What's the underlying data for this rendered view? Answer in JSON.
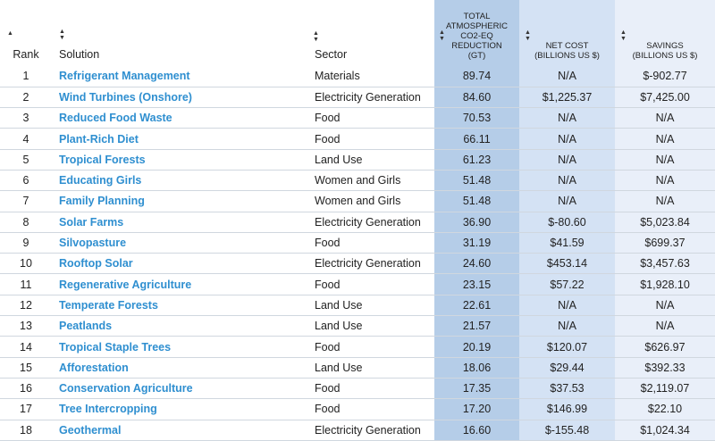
{
  "headers": {
    "rank": "Rank",
    "solution": "Solution",
    "sector": "Sector",
    "reduction": [
      "Total",
      "Atmospheric",
      "CO2-EQ",
      "Reduction",
      "(GT)"
    ],
    "net_cost": [
      "Net Cost",
      "(Billions US $)"
    ],
    "savings": [
      "Savings",
      "(Billions US $)"
    ]
  },
  "icons": {
    "sort_asc": "caret-up-icon",
    "sort_toggle": "sort-toggle-icon"
  },
  "rows": [
    {
      "rank": "1",
      "solution": "Refrigerant Management",
      "sector": "Materials",
      "reduction": "89.74",
      "net_cost": "N/A",
      "savings": "$-902.77"
    },
    {
      "rank": "2",
      "solution": "Wind Turbines (Onshore)",
      "sector": "Electricity Generation",
      "reduction": "84.60",
      "net_cost": "$1,225.37",
      "savings": "$7,425.00"
    },
    {
      "rank": "3",
      "solution": "Reduced Food Waste",
      "sector": "Food",
      "reduction": "70.53",
      "net_cost": "N/A",
      "savings": "N/A"
    },
    {
      "rank": "4",
      "solution": "Plant-Rich Diet",
      "sector": "Food",
      "reduction": "66.11",
      "net_cost": "N/A",
      "savings": "N/A"
    },
    {
      "rank": "5",
      "solution": "Tropical Forests",
      "sector": "Land Use",
      "reduction": "61.23",
      "net_cost": "N/A",
      "savings": "N/A"
    },
    {
      "rank": "6",
      "solution": "Educating Girls",
      "sector": "Women and Girls",
      "reduction": "51.48",
      "net_cost": "N/A",
      "savings": "N/A"
    },
    {
      "rank": "7",
      "solution": "Family Planning",
      "sector": "Women and Girls",
      "reduction": "51.48",
      "net_cost": "N/A",
      "savings": "N/A"
    },
    {
      "rank": "8",
      "solution": "Solar Farms",
      "sector": "Electricity Generation",
      "reduction": "36.90",
      "net_cost": "$-80.60",
      "savings": "$5,023.84"
    },
    {
      "rank": "9",
      "solution": "Silvopasture",
      "sector": "Food",
      "reduction": "31.19",
      "net_cost": "$41.59",
      "savings": "$699.37"
    },
    {
      "rank": "10",
      "solution": "Rooftop Solar",
      "sector": "Electricity Generation",
      "reduction": "24.60",
      "net_cost": "$453.14",
      "savings": "$3,457.63"
    },
    {
      "rank": "11",
      "solution": "Regenerative Agriculture",
      "sector": "Food",
      "reduction": "23.15",
      "net_cost": "$57.22",
      "savings": "$1,928.10"
    },
    {
      "rank": "12",
      "solution": "Temperate Forests",
      "sector": "Land Use",
      "reduction": "22.61",
      "net_cost": "N/A",
      "savings": "N/A"
    },
    {
      "rank": "13",
      "solution": "Peatlands",
      "sector": "Land Use",
      "reduction": "21.57",
      "net_cost": "N/A",
      "savings": "N/A"
    },
    {
      "rank": "14",
      "solution": "Tropical Staple Trees",
      "sector": "Food",
      "reduction": "20.19",
      "net_cost": "$120.07",
      "savings": "$626.97"
    },
    {
      "rank": "15",
      "solution": "Afforestation",
      "sector": "Land Use",
      "reduction": "18.06",
      "net_cost": "$29.44",
      "savings": "$392.33"
    },
    {
      "rank": "16",
      "solution": "Conservation Agriculture",
      "sector": "Food",
      "reduction": "17.35",
      "net_cost": "$37.53",
      "savings": "$2,119.07"
    },
    {
      "rank": "17",
      "solution": "Tree Intercropping",
      "sector": "Food",
      "reduction": "17.20",
      "net_cost": "$146.99",
      "savings": "$22.10"
    },
    {
      "rank": "18",
      "solution": "Geothermal",
      "sector": "Electricity Generation",
      "reduction": "16.60",
      "net_cost": "$-155.48",
      "savings": "$1,024.34"
    }
  ]
}
